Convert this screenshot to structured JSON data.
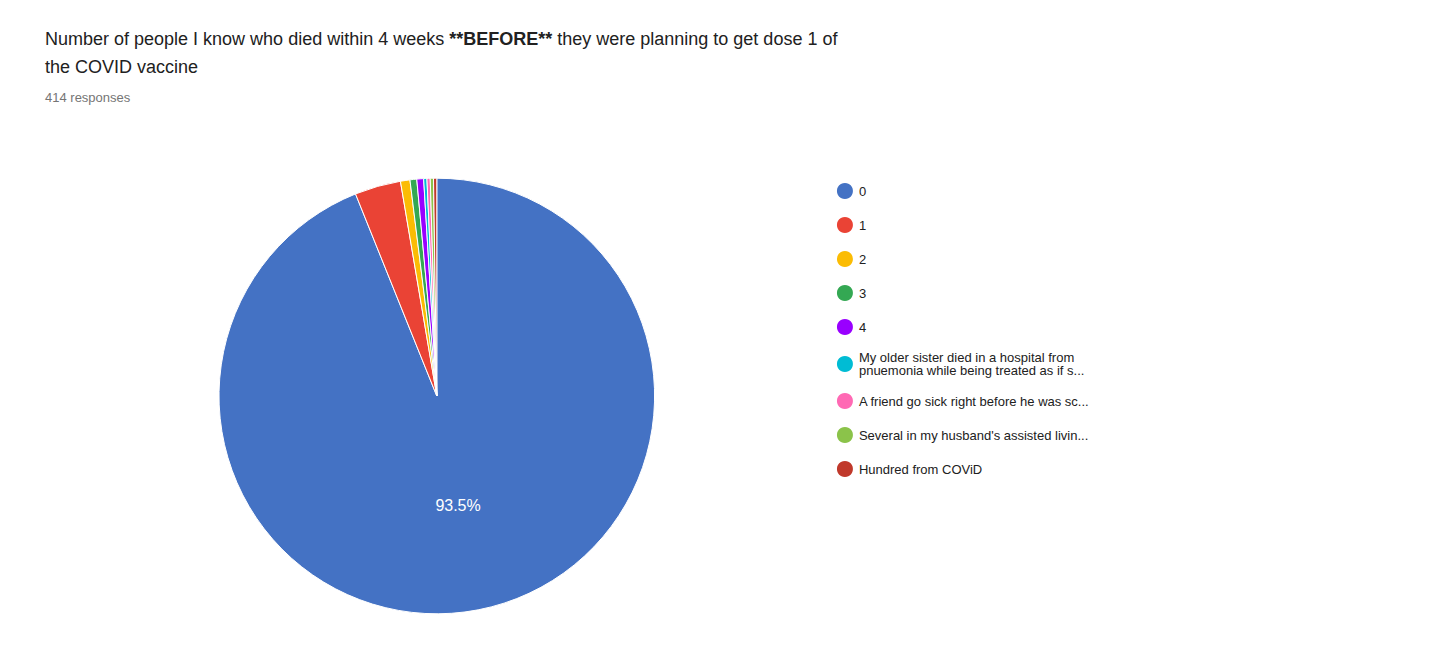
{
  "chart_data": {
    "type": "pie",
    "title": "Number of people I know who died within 4 weeks **BEFORE** they were planning to get dose 1 of\nthe COVID vaccine",
    "subtitle": "414 responses",
    "categories": [
      "0",
      "1",
      "2",
      "3",
      "4",
      "My older sister died in a hospital from\npnuemonia while being treated as if s...",
      "A friend go sick right before he was sc...",
      "Several in my husband's assisted livin...",
      "Hundred from COViD"
    ],
    "values": [
      93.5,
      3.4,
      0.7,
      0.5,
      0.5,
      0.24,
      0.24,
      0.24,
      0.24
    ],
    "colors": [
      "#4472C4",
      "#EA4335",
      "#FBBC04",
      "#34A853",
      "#9900FF",
      "#00BCD4",
      "#FF69B4",
      "#8BC34A",
      "#C0392B"
    ],
    "data_labels": true,
    "value_labels": [
      "93.5%",
      null,
      null,
      null,
      null,
      null,
      null,
      null,
      null
    ],
    "legend": "right"
  }
}
